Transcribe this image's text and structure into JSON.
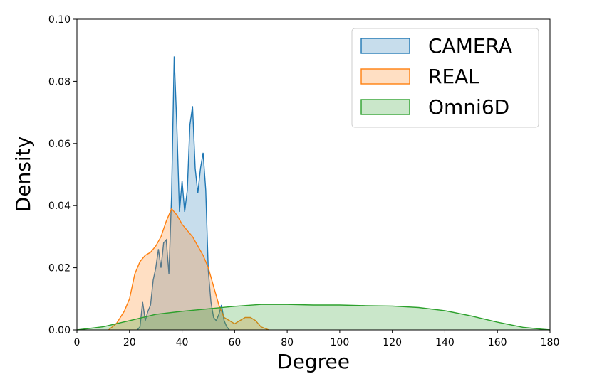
{
  "chart_data": {
    "type": "area",
    "title": "",
    "xlabel": "Degree",
    "ylabel": "Density",
    "xlim": [
      0,
      180
    ],
    "ylim": [
      0,
      0.1
    ],
    "x_ticks": [
      "0",
      "20",
      "40",
      "60",
      "80",
      "100",
      "120",
      "140",
      "160",
      "180"
    ],
    "y_ticks": [
      "0.00",
      "0.02",
      "0.04",
      "0.06",
      "0.08",
      "0.10"
    ],
    "legend_position": "top-right",
    "grid": false,
    "series": [
      {
        "name": "CAMERA",
        "color": "#1f77b4",
        "points": [
          [
            23,
            0
          ],
          [
            24,
            0.001
          ],
          [
            25,
            0.009
          ],
          [
            26,
            0.003
          ],
          [
            27,
            0.006
          ],
          [
            28,
            0.008
          ],
          [
            29,
            0.016
          ],
          [
            30,
            0.02
          ],
          [
            31,
            0.026
          ],
          [
            32,
            0.02
          ],
          [
            33,
            0.028
          ],
          [
            34,
            0.029
          ],
          [
            35,
            0.018
          ],
          [
            36,
            0.043
          ],
          [
            37,
            0.088
          ],
          [
            38,
            0.066
          ],
          [
            39,
            0.038
          ],
          [
            40,
            0.048
          ],
          [
            41,
            0.038
          ],
          [
            42,
            0.045
          ],
          [
            43,
            0.066
          ],
          [
            44,
            0.072
          ],
          [
            45,
            0.052
          ],
          [
            46,
            0.044
          ],
          [
            47,
            0.052
          ],
          [
            48,
            0.057
          ],
          [
            49,
            0.045
          ],
          [
            50,
            0.019
          ],
          [
            51,
            0.009
          ],
          [
            52,
            0.004
          ],
          [
            53,
            0.003
          ],
          [
            54,
            0.005
          ],
          [
            55,
            0.008
          ],
          [
            56,
            0.003
          ],
          [
            57,
            0.001
          ],
          [
            58,
            0
          ]
        ]
      },
      {
        "name": "REAL",
        "color": "#ff7f0e",
        "points": [
          [
            12,
            0
          ],
          [
            15,
            0.002
          ],
          [
            18,
            0.006
          ],
          [
            20,
            0.01
          ],
          [
            22,
            0.018
          ],
          [
            24,
            0.022
          ],
          [
            26,
            0.024
          ],
          [
            28,
            0.025
          ],
          [
            30,
            0.027
          ],
          [
            32,
            0.03
          ],
          [
            34,
            0.035
          ],
          [
            36,
            0.039
          ],
          [
            38,
            0.037
          ],
          [
            40,
            0.034
          ],
          [
            42,
            0.032
          ],
          [
            44,
            0.03
          ],
          [
            46,
            0.027
          ],
          [
            48,
            0.024
          ],
          [
            50,
            0.02
          ],
          [
            52,
            0.014
          ],
          [
            54,
            0.008
          ],
          [
            56,
            0.004
          ],
          [
            58,
            0.003
          ],
          [
            60,
            0.002
          ],
          [
            62,
            0.003
          ],
          [
            64,
            0.004
          ],
          [
            66,
            0.004
          ],
          [
            68,
            0.003
          ],
          [
            70,
            0.001
          ],
          [
            73,
            0
          ]
        ]
      },
      {
        "name": "Omni6D",
        "color": "#2ca02c",
        "points": [
          [
            0,
            0
          ],
          [
            10,
            0.001
          ],
          [
            20,
            0.003
          ],
          [
            30,
            0.005
          ],
          [
            40,
            0.006
          ],
          [
            50,
            0.0068
          ],
          [
            60,
            0.0076
          ],
          [
            70,
            0.0082
          ],
          [
            80,
            0.0082
          ],
          [
            90,
            0.008
          ],
          [
            100,
            0.008
          ],
          [
            110,
            0.0078
          ],
          [
            120,
            0.0077
          ],
          [
            130,
            0.0072
          ],
          [
            140,
            0.0062
          ],
          [
            150,
            0.0045
          ],
          [
            160,
            0.0025
          ],
          [
            170,
            0.0008
          ],
          [
            180,
            0
          ]
        ]
      }
    ]
  }
}
